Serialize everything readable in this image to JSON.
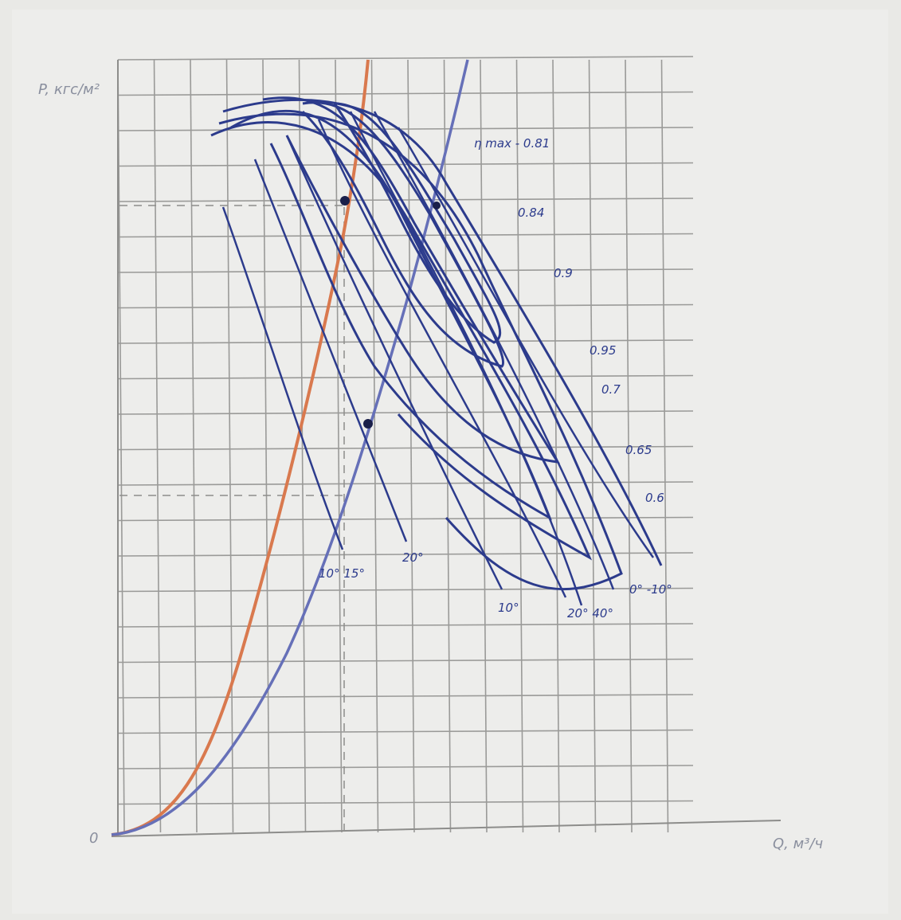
{
  "diagram": {
    "y_axis_label": "P, кгс/м²",
    "x_axis_label": "Q, м³/ч",
    "origin": "0",
    "efficiency_labels": [
      "η max - 0.81",
      "0.84",
      "0.9",
      "0.95",
      "0.7",
      "0.65",
      "0.6"
    ],
    "angle_labels": [
      "10° 15°",
      "20°",
      "10°",
      "20° 40°",
      "0° -10°"
    ]
  }
}
